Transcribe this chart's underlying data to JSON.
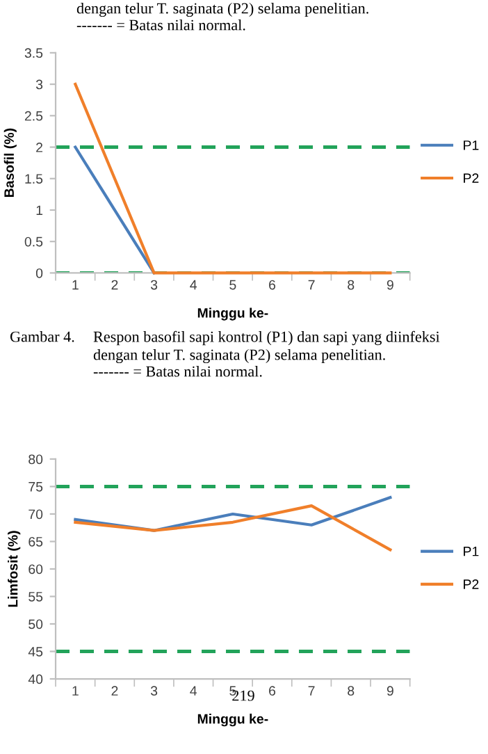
{
  "chart_data": [
    {
      "type": "line",
      "ylabel": "Basofil (%)",
      "xlabel": "Minggu ke-",
      "categories": [
        "1",
        "2",
        "3",
        "4",
        "5",
        "6",
        "7",
        "8",
        "9"
      ],
      "series": [
        {
          "name": "P1",
          "color": "#4a7ebb",
          "x": [
            "1",
            "3",
            "5",
            "7",
            "9"
          ],
          "values": [
            2,
            0,
            null,
            null,
            null
          ]
        },
        {
          "name": "P2",
          "color": "#f07f2a",
          "x": [
            "1",
            "3",
            "5",
            "7",
            "9"
          ],
          "values": [
            3,
            0,
            0,
            0,
            0
          ]
        }
      ],
      "ylim": [
        0,
        3.5
      ],
      "yticks": [
        0,
        0.5,
        1,
        1.5,
        2,
        2.5,
        3,
        3.5
      ],
      "ref_lines": [
        {
          "axis": "y",
          "value": 2,
          "color": "#22a35a",
          "line_style": "dashed"
        },
        {
          "axis": "y",
          "value": 0,
          "color": "#22a35a",
          "line_style": "dashed"
        }
      ],
      "legend": "right",
      "grid": false,
      "marker": "none",
      "line_style": "solid",
      "annotations": [
        "dengan telur T. saginata (P2) selama penelitian.",
        "------- = Batas nilai normal.",
        "Gambar 4.",
        "Respon basofil sapi kontrol (P1) dan sapi yang diinfeksi",
        "dengan telur T. saginata (P2) selama penelitian.",
        "------- = Batas nilai normal."
      ]
    },
    {
      "type": "line",
      "ylabel": "Limfosit (%)",
      "xlabel": "Minggu ke-",
      "categories": [
        "1",
        "2",
        "3",
        "4",
        "5",
        "6",
        "7",
        "8",
        "9"
      ],
      "series": [
        {
          "name": "P1",
          "color": "#4a7ebb",
          "x": [
            "1",
            "3",
            "5",
            "7",
            "9"
          ],
          "values": [
            69,
            67,
            70,
            68,
            73
          ]
        },
        {
          "name": "P2",
          "color": "#f07f2a",
          "x": [
            "1",
            "3",
            "5",
            "7",
            "9"
          ],
          "values": [
            68.5,
            67,
            68.5,
            71.5,
            63.5
          ]
        }
      ],
      "ylim": [
        40,
        80
      ],
      "yticks": [
        40,
        45,
        50,
        55,
        60,
        65,
        70,
        75,
        80
      ],
      "ref_lines": [
        {
          "axis": "y",
          "value": 75,
          "color": "#22a35a",
          "line_style": "dashed"
        },
        {
          "axis": "y",
          "value": 45,
          "color": "#22a35a",
          "line_style": "dashed"
        }
      ],
      "legend": "right",
      "grid": false,
      "marker": "none",
      "line_style": "solid",
      "annotations": [
        "219"
      ]
    }
  ]
}
